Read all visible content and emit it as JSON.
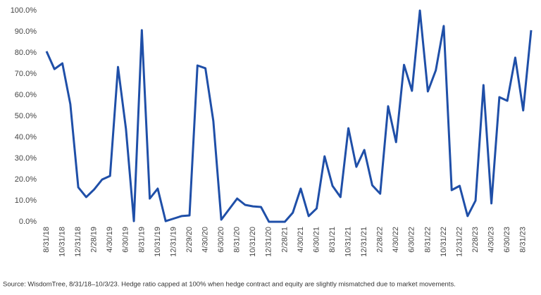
{
  "chart_data": {
    "type": "line",
    "categories": [
      "8/31/18",
      null,
      "10/31/18",
      null,
      "12/31/18",
      null,
      "2/28/19",
      null,
      "4/30/19",
      null,
      "6/30/19",
      null,
      "8/31/19",
      null,
      "10/31/19",
      null,
      "12/31/19",
      null,
      "2/29/20",
      null,
      "4/30/20",
      null,
      "6/30/20",
      null,
      "8/31/20",
      null,
      "10/31/20",
      null,
      "12/31/20",
      null,
      "2/28/21",
      null,
      "4/30/21",
      null,
      "6/30/21",
      null,
      "8/31/21",
      null,
      "10/31/21",
      null,
      "12/31/21",
      null,
      "2/28/22",
      null,
      "4/30/22",
      null,
      "6/30/22",
      null,
      "8/31/22",
      null,
      "10/31/22",
      null,
      "12/31/22",
      null,
      "2/28/23",
      null,
      "4/30/23",
      null,
      "6/30/23",
      null,
      "8/31/23",
      null
    ],
    "series": [
      {
        "color": "#1f4fa8",
        "values": [
          80.7,
          72.3,
          75,
          55.7,
          16.3,
          11.7,
          15.3,
          20,
          21.7,
          73.3,
          44,
          0.3,
          90.7,
          11,
          15.7,
          0.3,
          1.5,
          2.7,
          3,
          74,
          72.7,
          47.7,
          1,
          6,
          11,
          8,
          7.3,
          7,
          0,
          0,
          0,
          4.3,
          15.7,
          2.7,
          6.3,
          31,
          17,
          11.7,
          44.3,
          26,
          34,
          17.3,
          13.3,
          54.7,
          37.7,
          74.3,
          62,
          100,
          61.7,
          71.7,
          92.7,
          15,
          17,
          2.7,
          10,
          64.7,
          8.7,
          59,
          57.3,
          77.7,
          52.7,
          90.7
        ]
      }
    ],
    "ylim": [
      0,
      100
    ],
    "yticks": [
      {
        "value": 0,
        "label": "0.0%"
      },
      {
        "value": 10,
        "label": "10.0%"
      },
      {
        "value": 20,
        "label": "20.0%"
      },
      {
        "value": 30,
        "label": "30.0%"
      },
      {
        "value": 40,
        "label": "40.0%"
      },
      {
        "value": 50,
        "label": "50.0%"
      },
      {
        "value": 60,
        "label": "60.0%"
      },
      {
        "value": 70,
        "label": "70.0%"
      },
      {
        "value": 80,
        "label": "80.0%"
      },
      {
        "value": 90,
        "label": "90.0%"
      },
      {
        "value": 100,
        "label": "100.0%"
      }
    ],
    "grid": false,
    "source": "Source: WisdomTree, 8/31/18–10/3/23. Hedge ratio capped at 100% when hedge contract and equity are slightly mismatched due to market movements."
  }
}
